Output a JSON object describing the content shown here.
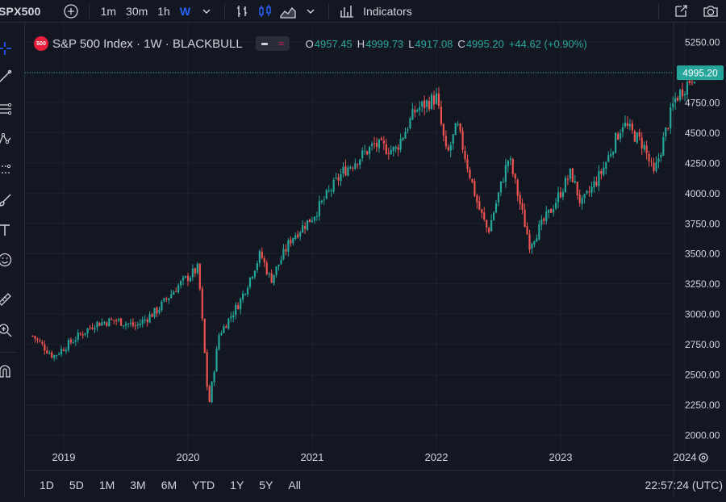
{
  "toolbar": {
    "symbol": "SPX500",
    "intervals": [
      "1m",
      "30m",
      "1h",
      "W"
    ],
    "active_interval": "W",
    "indicators_label": "Indicators"
  },
  "legend": {
    "badge": "500",
    "title": "S&P 500 Index · 1W · BLACKBULL",
    "o_label": "O",
    "o": "4957.45",
    "h_label": "H",
    "h": "4999.73",
    "l_label": "L",
    "l": "4917.08",
    "c_label": "C",
    "c": "4995.20",
    "change": "+44.62 (+0.90%)"
  },
  "bottom": {
    "ranges": [
      "1D",
      "5D",
      "1M",
      "3M",
      "6M",
      "YTD",
      "1Y",
      "5Y",
      "All"
    ],
    "clock": "22:57:24 (UTC)"
  },
  "colors": {
    "background": "#131722",
    "up": "#26a69a",
    "down": "#ef5350",
    "grid": "#1e222d",
    "last_price_label": "#26a69a"
  },
  "icons": [
    "add-symbol-icon",
    "bar-style-icon",
    "candle-style-icon",
    "area-style-icon",
    "chevron-down-icon",
    "indicators-icon",
    "snapshot-icon",
    "camera-icon",
    "settings-icon"
  ],
  "chart_data": {
    "type": "candlestick",
    "title": "S&P 500 Index · 1W · BLACKBULL",
    "interval": "1W",
    "x_ticks": [
      "2019",
      "2020",
      "2021",
      "2022",
      "2023",
      "2024"
    ],
    "y_ticks": [
      "5250.00",
      "5000.00",
      "4750.00",
      "4500.00",
      "4250.00",
      "4000.00",
      "3750.00",
      "3500.00",
      "3250.00",
      "3000.00",
      "2750.00",
      "2500.00",
      "2250.00",
      "2000.00"
    ],
    "ylim": [
      1900,
      5300
    ],
    "last_price": "4995.20",
    "grid": true,
    "series": [
      {
        "date": "2018-10",
        "close": 2820
      },
      {
        "date": "2018-12",
        "close": 2650
      },
      {
        "date": "2019-02",
        "close": 2790
      },
      {
        "date": "2019-04",
        "close": 2920
      },
      {
        "date": "2019-06",
        "close": 2950
      },
      {
        "date": "2019-08",
        "close": 2900
      },
      {
        "date": "2019-10",
        "close": 3030
      },
      {
        "date": "2019-12",
        "close": 3230
      },
      {
        "date": "2020-02",
        "close": 3380
      },
      {
        "date": "2020-03",
        "close": 2230
      },
      {
        "date": "2020-04",
        "close": 2830
      },
      {
        "date": "2020-06",
        "close": 3100
      },
      {
        "date": "2020-08",
        "close": 3500
      },
      {
        "date": "2020-09",
        "close": 3280
      },
      {
        "date": "2020-11",
        "close": 3630
      },
      {
        "date": "2021-01",
        "close": 3800
      },
      {
        "date": "2021-04",
        "close": 4180
      },
      {
        "date": "2021-07",
        "close": 4400
      },
      {
        "date": "2021-09",
        "close": 4350
      },
      {
        "date": "2021-11",
        "close": 4690
      },
      {
        "date": "2022-01",
        "close": 4790
      },
      {
        "date": "2022-02",
        "close": 4300
      },
      {
        "date": "2022-03",
        "close": 4560
      },
      {
        "date": "2022-05",
        "close": 3900
      },
      {
        "date": "2022-06",
        "close": 3680
      },
      {
        "date": "2022-08",
        "close": 4300
      },
      {
        "date": "2022-10",
        "close": 3580
      },
      {
        "date": "2022-12",
        "close": 3850
      },
      {
        "date": "2023-02",
        "close": 4170
      },
      {
        "date": "2023-03",
        "close": 3900
      },
      {
        "date": "2023-05",
        "close": 4180
      },
      {
        "date": "2023-07",
        "close": 4580
      },
      {
        "date": "2023-09",
        "close": 4400
      },
      {
        "date": "2023-10",
        "close": 4150
      },
      {
        "date": "2023-12",
        "close": 4770
      },
      {
        "date": "2024-02",
        "close": 4995
      }
    ]
  }
}
